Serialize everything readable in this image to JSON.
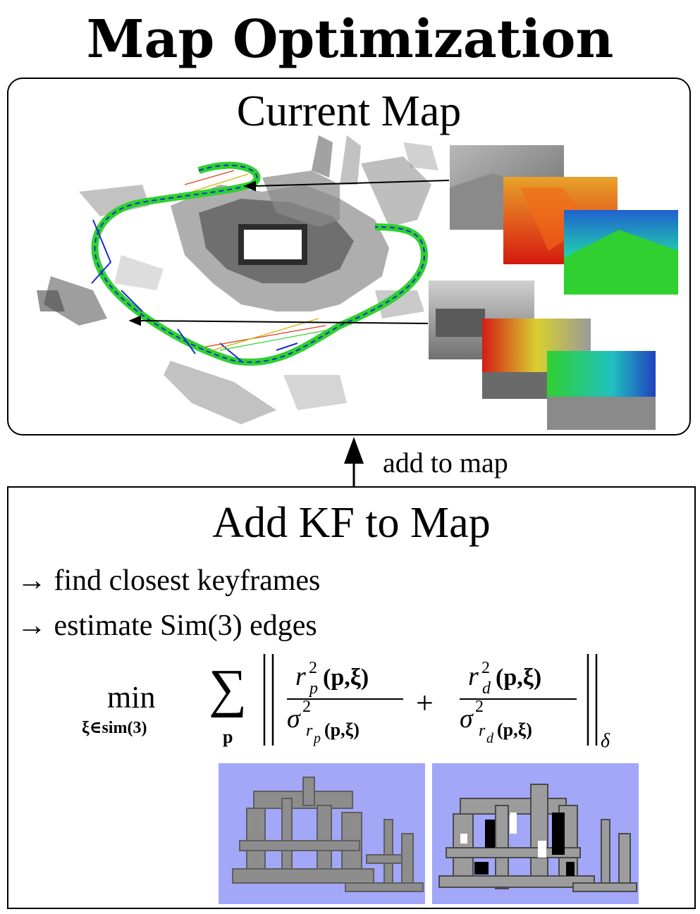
{
  "title": "Map Optimization",
  "current_map": {
    "title": "Current Map"
  },
  "connector": {
    "label": "add to map"
  },
  "add_kf": {
    "title": "Add KF to Map",
    "steps": [
      "find closest keyframes",
      "estimate Sim(3) edges"
    ],
    "step_arrow": "→",
    "formula": {
      "min": "min",
      "min_subscript": "ξ∈sim(3)",
      "sum_subscript": "p",
      "term1_numerator": "r",
      "term1_num_sup": "2",
      "term1_num_sub": "p",
      "term1_num_args": "(p,ξ)",
      "term1_denominator": "σ",
      "term1_den_sup": "2",
      "term1_den_sub": "r",
      "term1_den_sub_sub": "p",
      "term1_den_args": "(p,ξ)",
      "plus": "+",
      "term2_numerator": "r",
      "term2_num_sup": "2",
      "term2_num_sub": "d",
      "term2_num_args": "(p,ξ)",
      "term2_denominator": "σ",
      "term2_den_sup": "2",
      "term2_den_sub": "r",
      "term2_den_sub_sub": "d",
      "term2_den_args": "(p,ξ)",
      "norm_subscript": "δ"
    }
  },
  "colors": {
    "render_background": "#a3a7f8",
    "trajectory_green": "#2fd12f",
    "trajectory_blue": "#1a2bd0",
    "constraint_red": "#e03a1a",
    "constraint_yellow": "#c9b400"
  }
}
